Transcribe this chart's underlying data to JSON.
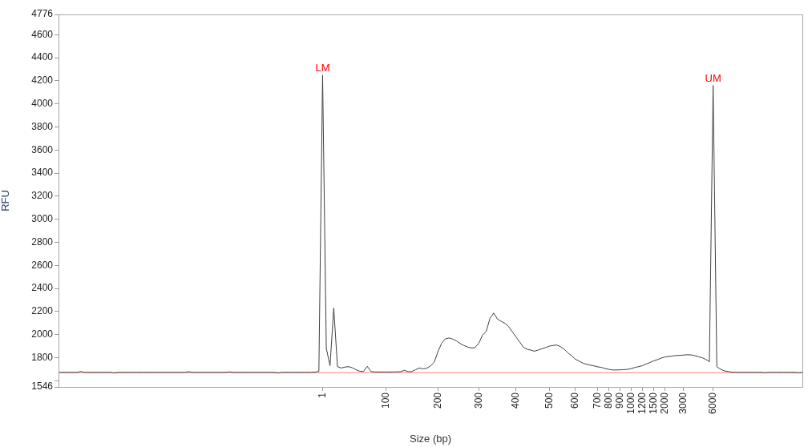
{
  "chart_data": {
    "type": "line",
    "xlabel": "Size (bp)",
    "ylabel": "RFU",
    "categories": [
      null,
      null,
      null,
      null,
      null,
      null,
      null,
      null,
      null,
      null,
      null,
      null,
      null,
      null,
      null,
      null,
      null,
      null,
      null,
      null,
      null,
      null,
      null,
      null,
      null,
      null,
      null,
      null,
      null,
      null,
      null,
      null,
      null,
      null,
      null,
      null,
      null,
      null,
      null,
      null,
      null,
      null,
      null,
      null,
      null,
      null,
      null,
      null,
      null,
      null,
      null,
      null,
      null,
      null,
      null,
      null,
      null,
      null,
      null,
      null,
      null,
      null,
      null,
      null,
      null,
      null,
      null,
      null,
      null,
      null,
      null,
      "1",
      null,
      null,
      null,
      null,
      null,
      null,
      null,
      null,
      null,
      null,
      null,
      null,
      null,
      null,
      null,
      null,
      "100",
      null,
      null,
      null,
      null,
      null,
      null,
      null,
      null,
      null,
      null,
      null,
      null,
      null,
      "200",
      null,
      null,
      null,
      null,
      null,
      null,
      null,
      null,
      null,
      null,
      "300",
      null,
      null,
      null,
      null,
      null,
      null,
      null,
      null,
      null,
      "400",
      null,
      null,
      null,
      null,
      null,
      null,
      null,
      null,
      "500",
      null,
      null,
      null,
      null,
      null,
      null,
      "600",
      null,
      null,
      null,
      null,
      null,
      "700",
      null,
      null,
      "800",
      null,
      null,
      "900",
      null,
      null,
      "1000",
      null,
      null,
      "1200",
      null,
      null,
      "1500",
      null,
      null,
      "2000",
      null,
      null,
      null,
      null,
      "3000",
      null,
      null,
      null,
      null,
      null,
      null,
      null,
      "6000",
      null,
      null,
      null,
      null,
      null,
      null,
      null,
      null,
      null,
      null,
      null,
      null,
      null,
      null,
      null,
      null,
      null,
      null,
      null,
      null,
      null,
      null,
      null,
      null
    ],
    "ylim": [
      1546,
      4776
    ],
    "yticks": [
      1546,
      {
        "value": 1600,
        "label": null
      },
      1800,
      2000,
      2200,
      2400,
      2600,
      2800,
      3000,
      3200,
      3400,
      3600,
      3800,
      4000,
      4200,
      4400,
      4600,
      4776
    ],
    "color": "#404040",
    "values": [
      1672,
      1672,
      1672,
      1672,
      1672,
      1672,
      1680,
      1672,
      1672,
      1672,
      1672,
      1672,
      1672,
      1672,
      1672,
      1666,
      1672,
      1672,
      1672,
      1672,
      1672,
      1672,
      1672,
      1672,
      1672,
      1672,
      1672,
      1672,
      1672,
      1672,
      1672,
      1672,
      1672,
      1672,
      1672,
      1678,
      1672,
      1672,
      1672,
      1672,
      1672,
      1672,
      1672,
      1672,
      1672,
      1672,
      1677,
      1672,
      1672,
      1672,
      1672,
      1672,
      1672,
      1672,
      1672,
      1672,
      1672,
      1672,
      1672,
      1666,
      1672,
      1672,
      1672,
      1672,
      1672,
      1672,
      1672,
      1672,
      1673,
      1675,
      1680,
      4250,
      1880,
      1730,
      2230,
      1722,
      1710,
      1718,
      1722,
      1712,
      1695,
      1682,
      1680,
      1725,
      1680,
      1676,
      1675,
      1676,
      1675,
      1676,
      1676,
      1677,
      1678,
      1690,
      1678,
      1680,
      1695,
      1710,
      1703,
      1708,
      1728,
      1760,
      1850,
      1925,
      1962,
      1971,
      1960,
      1945,
      1922,
      1905,
      1892,
      1883,
      1888,
      1925,
      1995,
      2028,
      2140,
      2187,
      2135,
      2115,
      2098,
      2070,
      2025,
      1980,
      1935,
      1890,
      1872,
      1865,
      1856,
      1866,
      1877,
      1888,
      1900,
      1906,
      1909,
      1895,
      1872,
      1840,
      1815,
      1785,
      1770,
      1752,
      1742,
      1735,
      1728,
      1720,
      1715,
      1705,
      1698,
      1693,
      1693,
      1694,
      1696,
      1698,
      1705,
      1715,
      1722,
      1730,
      1745,
      1758,
      1772,
      1782,
      1795,
      1805,
      1810,
      1814,
      1818,
      1820,
      1822,
      1825,
      1824,
      1818,
      1808,
      1800,
      1785,
      1765,
      4160,
      1720,
      1700,
      1685,
      1680,
      1674,
      1672,
      1672,
      1672,
      1672,
      1672,
      1672,
      1672,
      1672,
      1668,
      1672,
      1672,
      1672,
      1672,
      1672,
      1672,
      1672,
      1672,
      1668,
      1672
    ],
    "ref_lines": [
      {
        "axis": "y",
        "value": 1670,
        "color": "#ff8080"
      }
    ],
    "annotations": [
      {
        "text": "LM",
        "x": "1",
        "y": 4250
      },
      {
        "text": "UM",
        "x": "6000",
        "y": 4160
      }
    ],
    "grid": false,
    "legend": false,
    "marker": "none",
    "line_style": "solid"
  }
}
